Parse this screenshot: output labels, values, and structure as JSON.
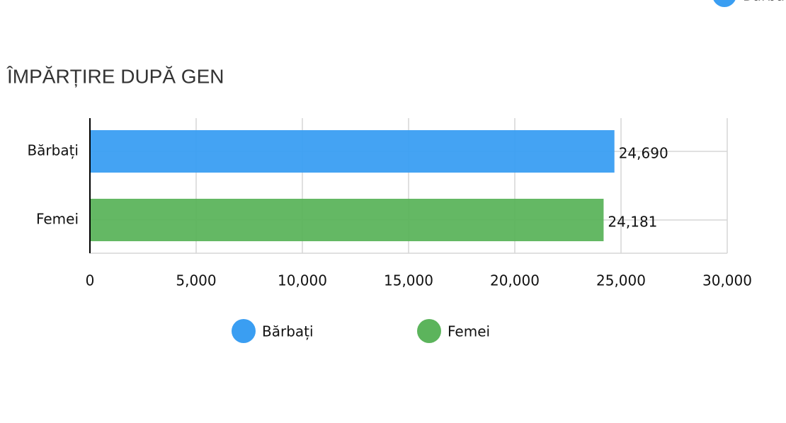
{
  "chart_data": {
    "type": "bar",
    "orientation": "horizontal",
    "title": "ÎMPĂRȚIRE DUPĂ GEN",
    "categories": [
      "Bărbați",
      "Femei"
    ],
    "values": [
      24690,
      24181
    ],
    "value_labels": [
      "24,690",
      "24,181"
    ],
    "colors": [
      "#3a9ef2",
      "#5cb45c"
    ],
    "xlim": [
      0,
      30000
    ],
    "xticks": [
      0,
      {
        "value": 5000,
        "label": "5,000"
      },
      {
        "value": 10000,
        "label": "10,000"
      },
      {
        "value": 15000,
        "label": "15,000"
      },
      {
        "value": 20000,
        "label": "20,000"
      },
      {
        "value": 25000,
        "label": "25,000"
      },
      {
        "value": 30000,
        "label": "30,000"
      }
    ],
    "grid": true,
    "legend": "bottom"
  }
}
